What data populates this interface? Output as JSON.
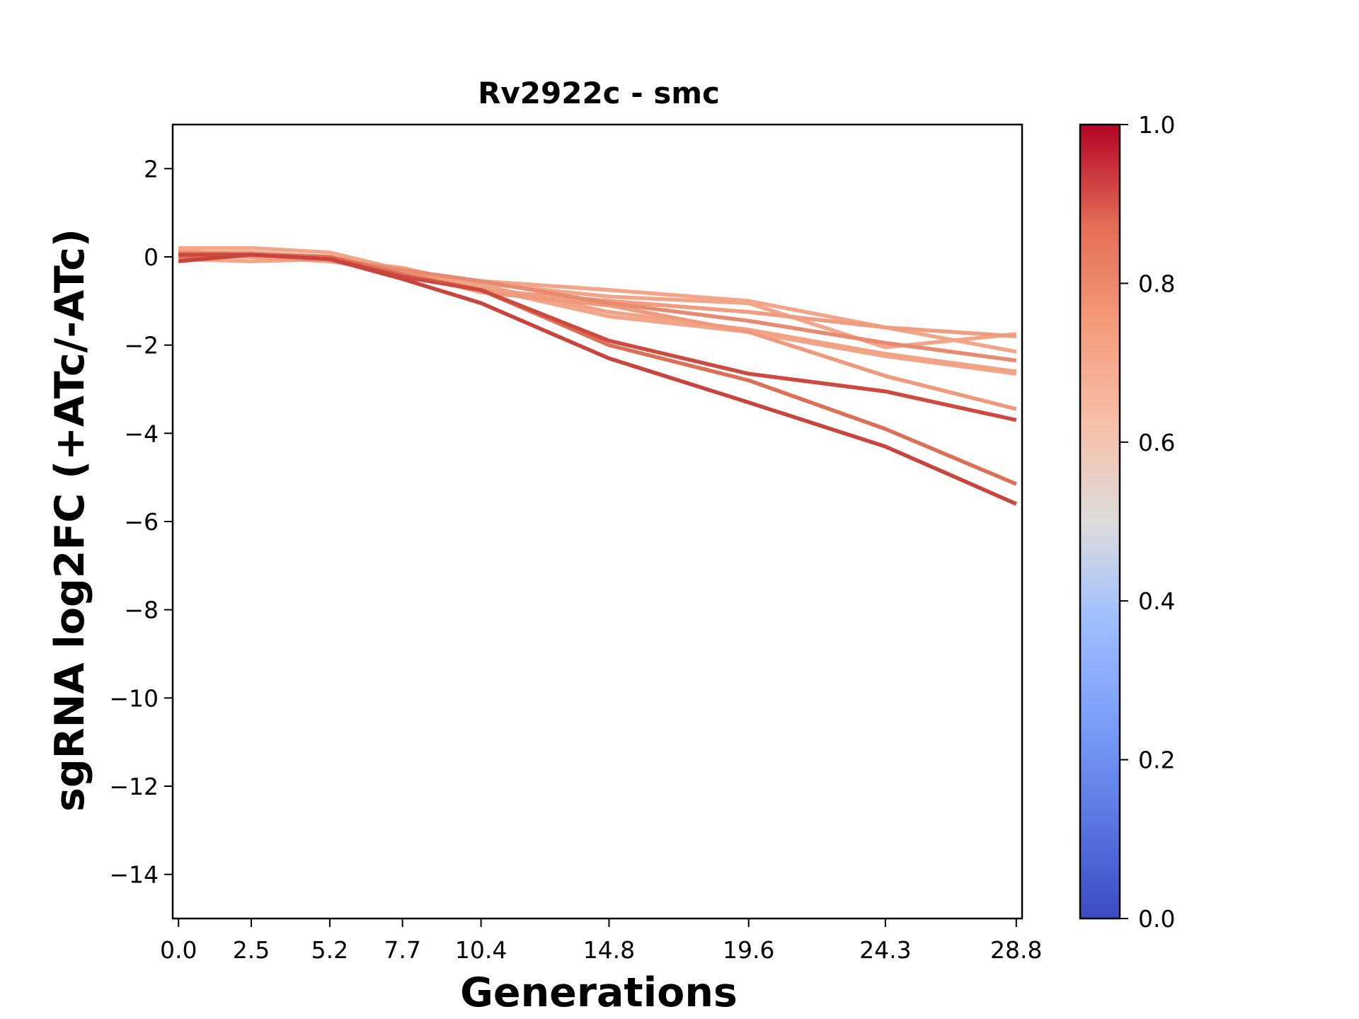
{
  "chart_data": {
    "type": "line",
    "title": "Rv2922c - smc",
    "xlabel": "Generations",
    "ylabel": "sgRNA log2FC (+ATc/-ATc)",
    "x": [
      0.0,
      2.5,
      5.2,
      7.7,
      10.4,
      14.8,
      19.6,
      24.3,
      28.8
    ],
    "x_tick_labels": [
      "0.0",
      "2.5",
      "5.2",
      "7.7",
      "10.4",
      "14.8",
      "19.6",
      "24.3",
      "28.8"
    ],
    "xlim": [
      -0.2,
      29.0
    ],
    "ylim": [
      -15,
      3
    ],
    "y_ticks": [
      2,
      0,
      -2,
      -4,
      -6,
      -8,
      -10,
      -12,
      -14
    ],
    "y_tick_labels": [
      "2",
      "0",
      "−2",
      "−4",
      "−6",
      "−8",
      "−10",
      "−12",
      "−14"
    ],
    "grid": false,
    "legend": "none",
    "series": [
      {
        "color_value": 0.7,
        "color": "#f2a588",
        "values": [
          0.2,
          0.2,
          0.1,
          -0.3,
          -0.55,
          -0.75,
          -1.0,
          -1.6,
          -2.15
        ]
      },
      {
        "color_value": 0.7,
        "color": "#f2a588",
        "values": [
          0.15,
          0.0,
          -0.05,
          -0.35,
          -0.6,
          -0.9,
          -1.05,
          -2.05,
          -1.75
        ]
      },
      {
        "color_value": 0.7,
        "color": "#f2a588",
        "values": [
          -0.05,
          -0.1,
          -0.05,
          -0.35,
          -0.7,
          -1.35,
          -1.7,
          -2.25,
          -2.65
        ]
      },
      {
        "color_value": 0.7,
        "color": "#f1a386",
        "values": [
          0.05,
          0.05,
          -0.05,
          -0.25,
          -0.65,
          -1.25,
          -1.65,
          -2.2,
          -2.6
        ]
      },
      {
        "color_value": 0.72,
        "color": "#ef9c7f",
        "values": [
          0.1,
          0.1,
          0.0,
          -0.3,
          -0.75,
          -1.0,
          -1.25,
          -1.6,
          -1.8
        ]
      },
      {
        "color_value": 0.73,
        "color": "#ef9a7c",
        "values": [
          0.05,
          0.0,
          -0.1,
          -0.35,
          -0.8,
          -1.1,
          -1.7,
          -2.7,
          -3.45
        ]
      },
      {
        "color_value": 0.78,
        "color": "#e88a6f",
        "values": [
          0.1,
          0.05,
          -0.05,
          -0.3,
          -0.55,
          -1.05,
          -1.45,
          -1.95,
          -2.35
        ]
      },
      {
        "color_value": 0.85,
        "color": "#dd6f56",
        "values": [
          0.0,
          0.05,
          0.0,
          -0.4,
          -0.75,
          -2.0,
          -2.8,
          -3.9,
          -5.15
        ]
      },
      {
        "color_value": 0.92,
        "color": "#cc4a3f",
        "values": [
          0.05,
          0.05,
          -0.05,
          -0.45,
          -0.75,
          -1.9,
          -2.65,
          -3.05,
          -3.7
        ]
      },
      {
        "color_value": 0.93,
        "color": "#c9443c",
        "values": [
          -0.1,
          0.05,
          -0.05,
          -0.5,
          -1.05,
          -2.3,
          -3.3,
          -4.3,
          -5.6
        ]
      }
    ],
    "colorbar": {
      "vmin": 0.0,
      "vmax": 1.0,
      "ticks": [
        "0.0",
        "0.2",
        "0.4",
        "0.6",
        "0.8",
        "1.0"
      ],
      "colormap": "coolwarm",
      "stops": [
        {
          "offset": 0.0,
          "color": "#3b4cc0"
        },
        {
          "offset": 0.125,
          "color": "#5a78e4"
        },
        {
          "offset": 0.25,
          "color": "#7b9ff9"
        },
        {
          "offset": 0.375,
          "color": "#9ebeff"
        },
        {
          "offset": 0.5,
          "color": "#dddcdc"
        },
        {
          "offset": 0.625,
          "color": "#f6bfa6"
        },
        {
          "offset": 0.75,
          "color": "#f49a7b"
        },
        {
          "offset": 0.875,
          "color": "#e36c55"
        },
        {
          "offset": 1.0,
          "color": "#b40426"
        }
      ]
    }
  }
}
